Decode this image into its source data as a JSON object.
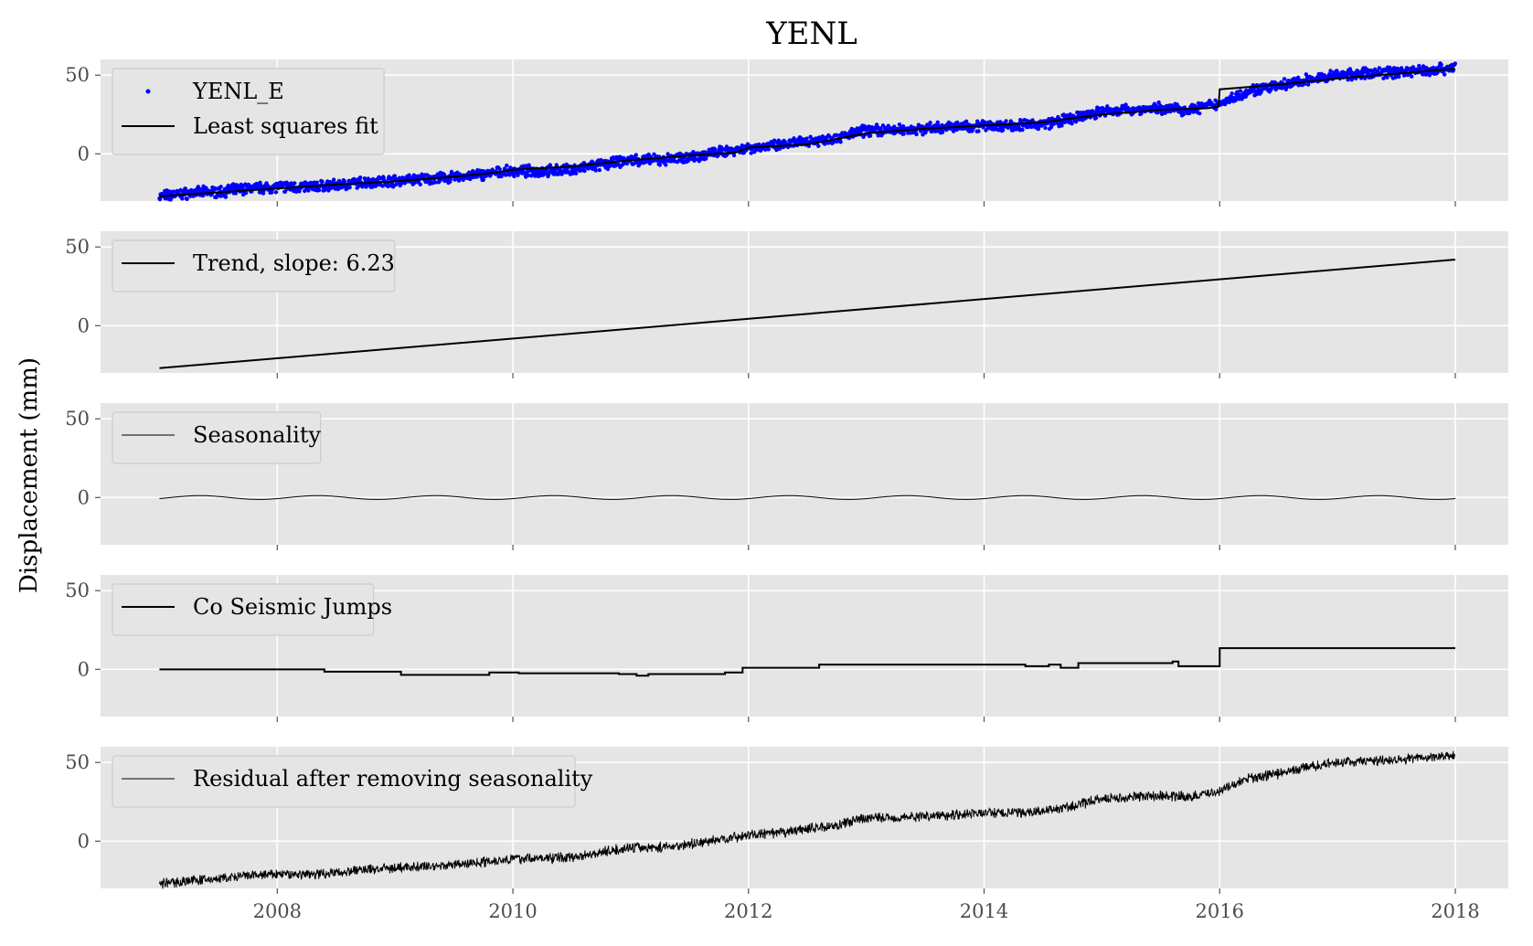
{
  "figure": {
    "title": "YENL",
    "ylabel": "Displacement (mm)"
  },
  "chart_data": {
    "type": "line",
    "title": "YENL",
    "ylabel": "Displacement (mm)",
    "xlabel": "",
    "xlim": [
      2006.5,
      2018.45
    ],
    "x_ticks": [
      2008,
      2010,
      2012,
      2014,
      2016,
      2018
    ],
    "grid": true,
    "background": "#e5e5e5",
    "panels": [
      {
        "ylim": [
          -30,
          60
        ],
        "y_ticks": [
          0,
          50
        ],
        "legend": "top-left",
        "series": [
          {
            "name": "YENL_E",
            "kind": "scatter",
            "color": "#0000ff",
            "points": [
              [
                2007.0,
                -27
              ],
              [
                2007.25,
                -25
              ],
              [
                2007.5,
                -24
              ],
              [
                2007.75,
                -22
              ],
              [
                2008.0,
                -21
              ],
              [
                2008.25,
                -21
              ],
              [
                2008.5,
                -20
              ],
              [
                2008.75,
                -18
              ],
              [
                2009.0,
                -17
              ],
              [
                2009.25,
                -16
              ],
              [
                2009.5,
                -15
              ],
              [
                2009.75,
                -13
              ],
              [
                2010.0,
                -11
              ],
              [
                2010.25,
                -11
              ],
              [
                2010.5,
                -10
              ],
              [
                2010.75,
                -7
              ],
              [
                2011.0,
                -4
              ],
              [
                2011.25,
                -4
              ],
              [
                2011.5,
                -2
              ],
              [
                2011.75,
                1
              ],
              [
                2012.0,
                4
              ],
              [
                2012.25,
                5
              ],
              [
                2012.5,
                8
              ],
              [
                2012.75,
                10
              ],
              [
                2013.0,
                15
              ],
              [
                2013.25,
                15
              ],
              [
                2013.5,
                16
              ],
              [
                2013.75,
                17
              ],
              [
                2014.0,
                18
              ],
              [
                2014.25,
                18
              ],
              [
                2014.5,
                19
              ],
              [
                2014.75,
                22
              ],
              [
                2015.0,
                27
              ],
              [
                2015.25,
                28
              ],
              [
                2015.5,
                29
              ],
              [
                2015.75,
                28
              ],
              [
                2016.0,
                32
              ],
              [
                2016.25,
                40
              ],
              [
                2016.5,
                43
              ],
              [
                2016.75,
                47
              ],
              [
                2017.0,
                50
              ],
              [
                2017.25,
                51
              ],
              [
                2017.5,
                52
              ],
              [
                2017.75,
                53
              ],
              [
                2018.0,
                55
              ]
            ]
          },
          {
            "name": "Least squares fit",
            "kind": "line",
            "color": "#000000",
            "points": [
              [
                2007.0,
                -27
              ],
              [
                2007.5,
                -24.5
              ],
              [
                2008.0,
                -22
              ],
              [
                2008.5,
                -19.5
              ],
              [
                2009.0,
                -17.5
              ],
              [
                2009.5,
                -14.5
              ],
              [
                2009.85,
                -12
              ],
              [
                2010.0,
                -10
              ],
              [
                2010.5,
                -8
              ],
              [
                2011.0,
                -4
              ],
              [
                2011.5,
                -1
              ],
              [
                2011.9,
                1
              ],
              [
                2012.0,
                4
              ],
              [
                2012.5,
                6
              ],
              [
                2013.0,
                13
              ],
              [
                2013.5,
                16
              ],
              [
                2014.0,
                18
              ],
              [
                2014.5,
                20
              ],
              [
                2014.7,
                22
              ],
              [
                2015.0,
                25
              ],
              [
                2015.5,
                28
              ],
              [
                2015.9,
                29
              ],
              [
                2015.99,
                30
              ],
              [
                2016.0,
                41
              ],
              [
                2016.5,
                44
              ],
              [
                2017.0,
                48
              ],
              [
                2017.5,
                51
              ],
              [
                2018.0,
                54
              ]
            ]
          }
        ]
      },
      {
        "ylim": [
          -30,
          60
        ],
        "y_ticks": [
          0,
          50
        ],
        "legend": "top-left",
        "series": [
          {
            "name": "Trend, slope: 6.23",
            "kind": "line",
            "color": "#000000",
            "points": [
              [
                2007.0,
                -27
              ],
              [
                2018.0,
                42
              ]
            ]
          }
        ]
      },
      {
        "ylim": [
          -30,
          60
        ],
        "y_ticks": [
          0,
          50
        ],
        "legend": "top-left",
        "series": [
          {
            "name": "Seasonality",
            "kind": "line",
            "color": "#000000",
            "thin": true,
            "amplitude": 1.2,
            "period_years": 1.0,
            "x_range": [
              2007.0,
              2018.0
            ]
          }
        ]
      },
      {
        "ylim": [
          -30,
          60
        ],
        "y_ticks": [
          0,
          50
        ],
        "legend": "top-left",
        "series": [
          {
            "name": "Co Seismic Jumps",
            "kind": "step",
            "color": "#000000",
            "points": [
              [
                2007.0,
                0
              ],
              [
                2008.4,
                -1.5
              ],
              [
                2009.05,
                -3.5
              ],
              [
                2009.8,
                -2
              ],
              [
                2010.05,
                -2.5
              ],
              [
                2010.7,
                -2.5
              ],
              [
                2010.9,
                -3
              ],
              [
                2011.05,
                -4
              ],
              [
                2011.15,
                -3
              ],
              [
                2011.8,
                -2
              ],
              [
                2011.95,
                1
              ],
              [
                2012.6,
                3
              ],
              [
                2014.35,
                2
              ],
              [
                2014.55,
                3
              ],
              [
                2014.65,
                1
              ],
              [
                2014.8,
                4
              ],
              [
                2015.6,
                5
              ],
              [
                2015.65,
                2
              ],
              [
                2015.98,
                2
              ],
              [
                2016.0,
                13.5
              ],
              [
                2018.0,
                13.5
              ]
            ]
          }
        ]
      },
      {
        "ylim": [
          -30,
          60
        ],
        "y_ticks": [
          0,
          50
        ],
        "legend": "top-left",
        "series": [
          {
            "name": "Residual after removing seasonality",
            "kind": "line",
            "color": "#000000",
            "thin": true,
            "points": [
              [
                2007.0,
                -27
              ],
              [
                2007.25,
                -25
              ],
              [
                2007.5,
                -24
              ],
              [
                2007.75,
                -22
              ],
              [
                2008.0,
                -21
              ],
              [
                2008.25,
                -21
              ],
              [
                2008.5,
                -20
              ],
              [
                2008.75,
                -18
              ],
              [
                2009.0,
                -17
              ],
              [
                2009.25,
                -16
              ],
              [
                2009.5,
                -15
              ],
              [
                2009.75,
                -13
              ],
              [
                2010.0,
                -11
              ],
              [
                2010.25,
                -11
              ],
              [
                2010.5,
                -10
              ],
              [
                2010.75,
                -7
              ],
              [
                2011.0,
                -4
              ],
              [
                2011.25,
                -4
              ],
              [
                2011.5,
                -2
              ],
              [
                2011.75,
                1
              ],
              [
                2012.0,
                4
              ],
              [
                2012.25,
                5
              ],
              [
                2012.5,
                8
              ],
              [
                2012.75,
                10
              ],
              [
                2013.0,
                15
              ],
              [
                2013.25,
                15
              ],
              [
                2013.5,
                16
              ],
              [
                2013.75,
                17
              ],
              [
                2014.0,
                18
              ],
              [
                2014.25,
                18
              ],
              [
                2014.5,
                19
              ],
              [
                2014.75,
                22
              ],
              [
                2015.0,
                27
              ],
              [
                2015.25,
                28
              ],
              [
                2015.5,
                29
              ],
              [
                2015.75,
                28
              ],
              [
                2016.0,
                32
              ],
              [
                2016.25,
                40
              ],
              [
                2016.5,
                43
              ],
              [
                2016.75,
                47
              ],
              [
                2017.0,
                50
              ],
              [
                2017.25,
                51
              ],
              [
                2017.5,
                52
              ],
              [
                2017.75,
                53
              ],
              [
                2018.0,
                55
              ]
            ]
          }
        ]
      }
    ]
  }
}
